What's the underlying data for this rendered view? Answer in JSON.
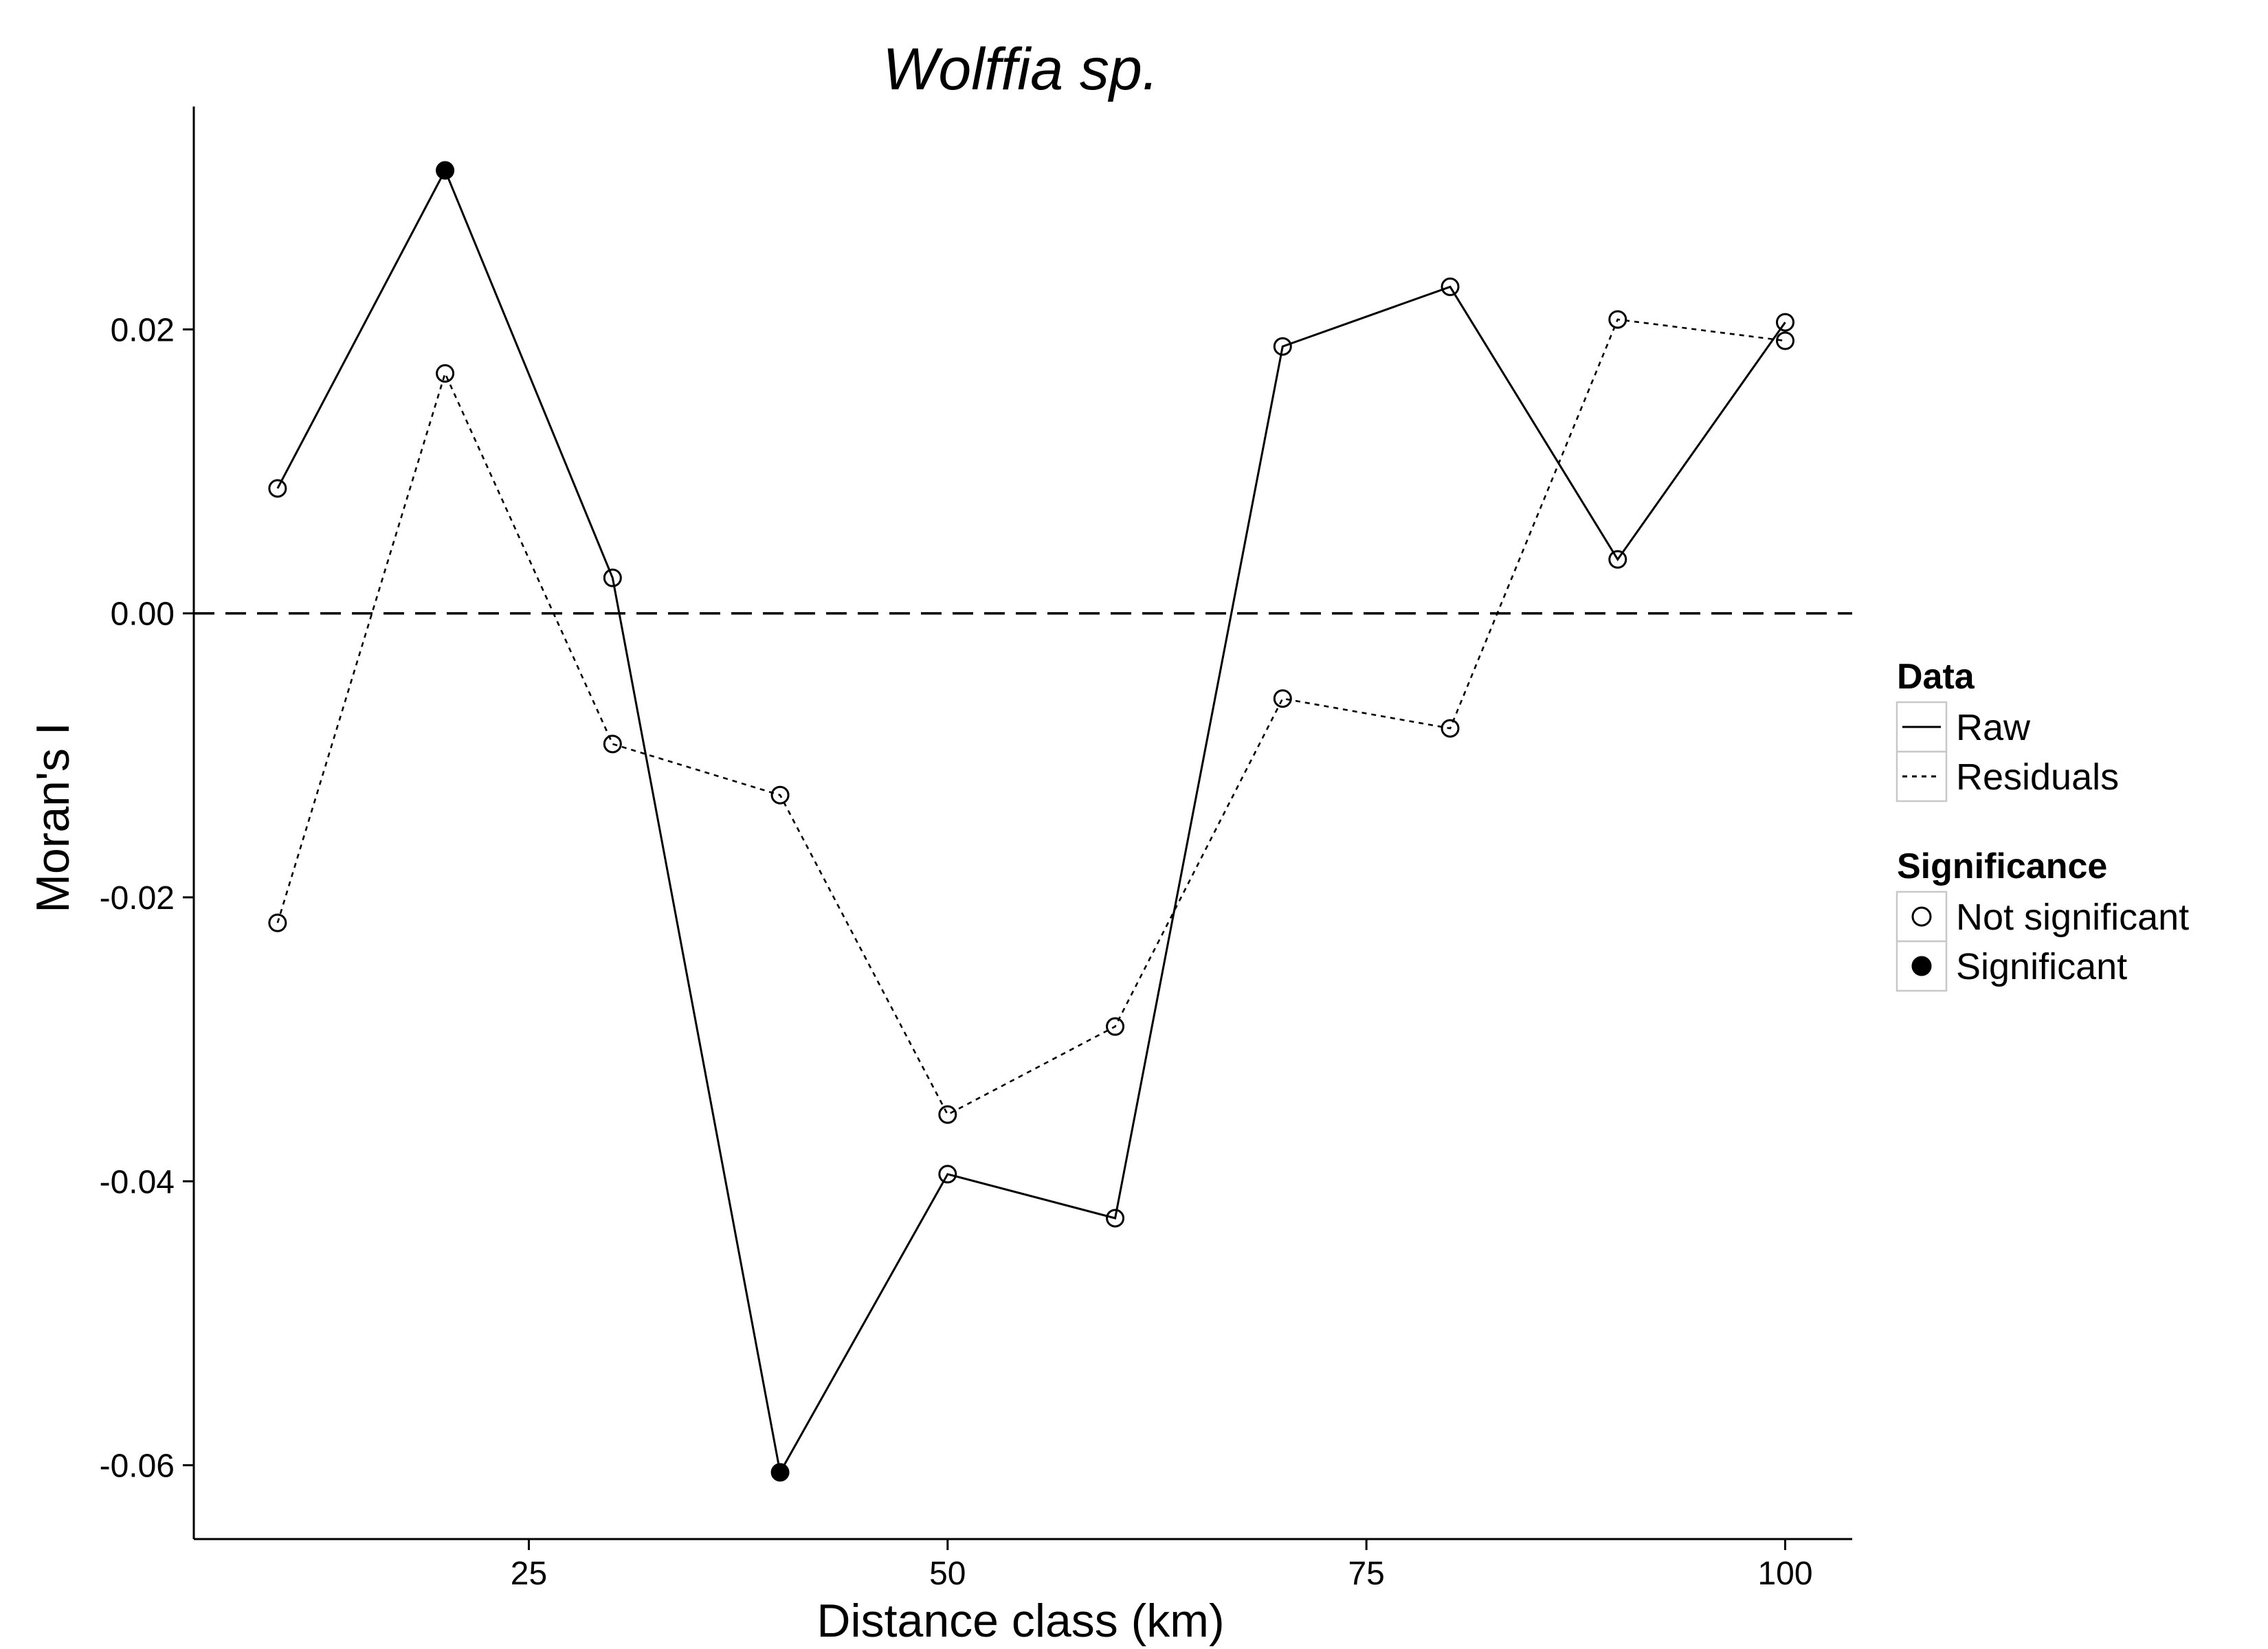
{
  "chart_data": {
    "type": "line",
    "title": "Wolffia sp.",
    "xlabel": "Distance class (km)",
    "ylabel": "Moran's I",
    "xlim": [
      5,
      104
    ],
    "ylim": [
      -0.0652,
      0.0357
    ],
    "x_ticks": [
      25,
      50,
      75,
      100
    ],
    "x_tick_labels": [
      "25",
      "50",
      "75",
      "100"
    ],
    "y_ticks": [
      -0.06,
      -0.04,
      -0.02,
      0.0,
      0.02
    ],
    "y_tick_labels": [
      "-0.06",
      "-0.04",
      "-0.02",
      "0.00",
      "0.02"
    ],
    "reference_line": {
      "y": 0,
      "style": "dashed"
    },
    "grid": false,
    "legend_position": "right",
    "x": [
      10,
      20,
      30,
      40,
      50,
      60,
      70,
      80,
      90,
      100
    ],
    "series": [
      {
        "name": "Raw",
        "line_style": "solid",
        "values": [
          0.0088,
          0.0312,
          0.0025,
          -0.0605,
          -0.0395,
          -0.0426,
          0.0188,
          0.023,
          0.0038,
          0.0205
        ],
        "significant": [
          false,
          true,
          false,
          true,
          false,
          false,
          false,
          false,
          false,
          false
        ]
      },
      {
        "name": "Residuals",
        "line_style": "dotted",
        "values": [
          -0.0218,
          0.0169,
          -0.0092,
          -0.0128,
          -0.0353,
          -0.0291,
          -0.006,
          -0.0081,
          0.0207,
          0.0192
        ],
        "significant": [
          false,
          false,
          false,
          false,
          false,
          false,
          false,
          false,
          false,
          false
        ]
      }
    ],
    "legends": [
      {
        "title": "Data",
        "items": [
          {
            "label": "Raw",
            "line_style": "solid"
          },
          {
            "label": "Residuals",
            "line_style": "dotted"
          }
        ]
      },
      {
        "title": "Significance",
        "items": [
          {
            "label": "Not significant",
            "marker": "open-circle"
          },
          {
            "label": "Significant",
            "marker": "filled-circle"
          }
        ]
      }
    ],
    "colors": {
      "line": "#000000",
      "background": "#ffffff",
      "legend_box": "#c8c8c8"
    }
  }
}
